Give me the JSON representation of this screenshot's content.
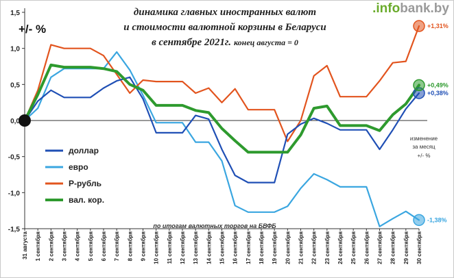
{
  "brand": {
    "prefix": ".info",
    "suffix": "bank.by"
  },
  "chart_data": {
    "type": "line",
    "title_lines": [
      "динамика главных иностранных валют",
      "и стоимости валютной корзины в Беларуси",
      "в сентябре 2021г."
    ],
    "subtitle": "конец августа = 0",
    "ylabel": "+/- %",
    "ylim": [
      -1.5,
      1.5
    ],
    "yticks": [
      "1,5",
      "1,0",
      "0,5",
      "0,0",
      "-0,5",
      "-1,0",
      "-1,5"
    ],
    "categories": [
      "31 августа",
      "1 сентября",
      "2 сентября",
      "3 сентября",
      "4 сентября",
      "5 сентября",
      "6 сентября",
      "7 сентября",
      "8 сентября",
      "9 сентября",
      "10 сентября",
      "11 сентября",
      "12 сентября",
      "13 сентября",
      "14 сентября",
      "15 сентября",
      "16 сентября",
      "17 сентября",
      "18 сентября",
      "19 сентября",
      "20 сентября",
      "21 сентября",
      "22 сентября",
      "23 сентября",
      "24 сентября",
      "25 сентября",
      "26 сентября",
      "27 сентября",
      "28 сентября",
      "29 сентября",
      "30 сентября"
    ],
    "series": [
      {
        "name": "доллар",
        "color": "#1f4fb5",
        "end_label": "+0,38%",
        "values": [
          0,
          0.27,
          0.42,
          0.32,
          0.32,
          0.32,
          0.45,
          0.55,
          0.6,
          0.3,
          -0.17,
          -0.17,
          -0.17,
          0.07,
          0.02,
          -0.4,
          -0.76,
          -0.86,
          -0.86,
          -0.86,
          -0.19,
          -0.05,
          0.03,
          -0.04,
          -0.13,
          -0.13,
          -0.13,
          -0.4,
          -0.13,
          0.16,
          0.38
        ]
      },
      {
        "name": "евро",
        "color": "#3aa6e0",
        "end_label": "-1,38%",
        "values": [
          0,
          0.17,
          0.6,
          0.72,
          0.72,
          0.72,
          0.72,
          0.95,
          0.7,
          0.35,
          -0.03,
          -0.03,
          -0.03,
          -0.3,
          -0.3,
          -0.56,
          -1.18,
          -1.27,
          -1.27,
          -1.27,
          -1.19,
          -0.94,
          -0.74,
          -0.82,
          -0.92,
          -0.92,
          -0.92,
          -1.47,
          -1.36,
          -1.26,
          -1.38
        ]
      },
      {
        "name": "Р-рубль",
        "color": "#e2541e",
        "end_label": "+1,31%",
        "values": [
          0,
          0.42,
          1.05,
          1.0,
          1.0,
          1.0,
          0.9,
          0.64,
          0.38,
          0.56,
          0.54,
          0.54,
          0.54,
          0.38,
          0.45,
          0.25,
          0.44,
          0.15,
          0.15,
          0.15,
          -0.29,
          0.0,
          0.62,
          0.76,
          0.33,
          0.33,
          0.33,
          0.55,
          0.8,
          0.82,
          1.31
        ]
      },
      {
        "name": "вал. кор.",
        "color": "#2e9a2e",
        "end_label": "+0,49%",
        "values": [
          0,
          0.36,
          0.77,
          0.74,
          0.74,
          0.74,
          0.72,
          0.68,
          0.5,
          0.42,
          0.21,
          0.21,
          0.21,
          0.14,
          0.11,
          -0.11,
          -0.28,
          -0.44,
          -0.44,
          -0.44,
          -0.44,
          -0.2,
          0.17,
          0.2,
          -0.07,
          -0.07,
          -0.07,
          -0.14,
          0.08,
          0.23,
          0.49
        ]
      }
    ],
    "grid": false,
    "legend": "left-bottom"
  },
  "notes": {
    "source": "по итогам валютных торгов на БВФБ",
    "monthly_change": [
      "изменение",
      "за месяц",
      "+/- %"
    ]
  }
}
